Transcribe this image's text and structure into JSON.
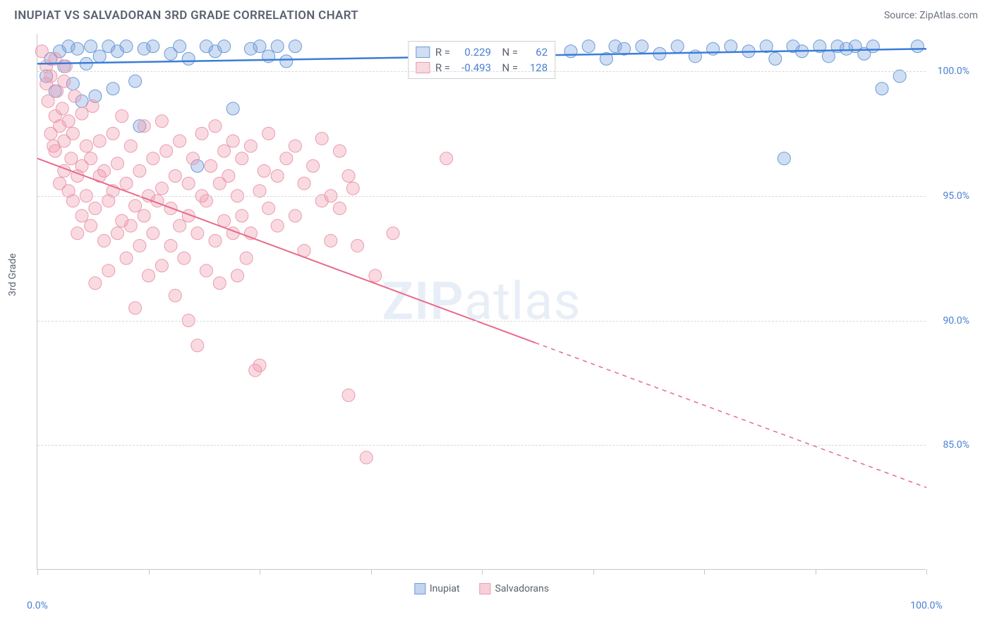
{
  "title": "INUPIAT VS SALVADORAN 3RD GRADE CORRELATION CHART",
  "source": "Source: ZipAtlas.com",
  "ylabel": "3rd Grade",
  "watermark_bold": "ZIP",
  "watermark_rest": "atlas",
  "chart": {
    "type": "scatter",
    "xlim": [
      0,
      100
    ],
    "ylim": [
      80,
      101.5
    ],
    "yticks": [
      85.0,
      90.0,
      95.0,
      100.0
    ],
    "ytick_labels": [
      "85.0%",
      "90.0%",
      "95.0%",
      "100.0%"
    ],
    "xticks": [
      0,
      12.5,
      25,
      37.5,
      50,
      62.5,
      75,
      87.5,
      100
    ],
    "xtick_labels_shown": {
      "0": "0.0%",
      "100": "100.0%"
    },
    "background_color": "#ffffff",
    "grid_color": "#d8d8d8",
    "axis_color": "#c8c8c8",
    "series": [
      {
        "name": "Inupiat",
        "color_fill": "rgba(120,160,220,0.35)",
        "color_stroke": "#6a9ad8",
        "trend_color": "#3b7dd8",
        "trend_width": 2.5,
        "marker_radius": 9,
        "R": "0.229",
        "N": "62",
        "trend": {
          "x1": 0,
          "y1": 100.3,
          "x2": 100,
          "y2": 100.9,
          "dash_after_x": 100
        },
        "points": [
          [
            1,
            99.8
          ],
          [
            1.5,
            100.5
          ],
          [
            2,
            99.2
          ],
          [
            2.5,
            100.8
          ],
          [
            3,
            100.2
          ],
          [
            3.5,
            101
          ],
          [
            4,
            99.5
          ],
          [
            4.5,
            100.9
          ],
          [
            5,
            98.8
          ],
          [
            5.5,
            100.3
          ],
          [
            6,
            101
          ],
          [
            6.5,
            99
          ],
          [
            7,
            100.6
          ],
          [
            8,
            101
          ],
          [
            8.5,
            99.3
          ],
          [
            9,
            100.8
          ],
          [
            10,
            101
          ],
          [
            11,
            99.6
          ],
          [
            11.5,
            97.8
          ],
          [
            12,
            100.9
          ],
          [
            13,
            101
          ],
          [
            15,
            100.7
          ],
          [
            16,
            101
          ],
          [
            17,
            100.5
          ],
          [
            18,
            96.2
          ],
          [
            19,
            101
          ],
          [
            20,
            100.8
          ],
          [
            21,
            101
          ],
          [
            22,
            98.5
          ],
          [
            24,
            100.9
          ],
          [
            25,
            101
          ],
          [
            26,
            100.6
          ],
          [
            27,
            101
          ],
          [
            28,
            100.4
          ],
          [
            29,
            101
          ],
          [
            60,
            100.8
          ],
          [
            62,
            101
          ],
          [
            64,
            100.5
          ],
          [
            65,
            101
          ],
          [
            66,
            100.9
          ],
          [
            68,
            101
          ],
          [
            70,
            100.7
          ],
          [
            72,
            101
          ],
          [
            74,
            100.6
          ],
          [
            76,
            100.9
          ],
          [
            78,
            101
          ],
          [
            80,
            100.8
          ],
          [
            82,
            101
          ],
          [
            83,
            100.5
          ],
          [
            84,
            96.5
          ],
          [
            85,
            101
          ],
          [
            86,
            100.8
          ],
          [
            88,
            101
          ],
          [
            89,
            100.6
          ],
          [
            90,
            101
          ],
          [
            91,
            100.9
          ],
          [
            92,
            101
          ],
          [
            93,
            100.7
          ],
          [
            94,
            101
          ],
          [
            95,
            99.3
          ],
          [
            97,
            99.8
          ],
          [
            99,
            101
          ]
        ]
      },
      {
        "name": "Salvadorans",
        "color_fill": "rgba(240,150,170,0.35)",
        "color_stroke": "#ea9ab2",
        "trend_color": "#e86a8a",
        "trend_width": 2,
        "marker_radius": 9,
        "R": "-0.493",
        "N": "128",
        "trend": {
          "x1": 0,
          "y1": 96.5,
          "x2": 100,
          "y2": 83.3,
          "dash_after_x": 56
        },
        "points": [
          [
            0.5,
            100.8
          ],
          [
            1,
            99.5
          ],
          [
            1,
            100.2
          ],
          [
            1.2,
            98.8
          ],
          [
            1.5,
            97.5
          ],
          [
            1.5,
            99.8
          ],
          [
            1.8,
            97
          ],
          [
            2,
            100.5
          ],
          [
            2,
            98.2
          ],
          [
            2,
            96.8
          ],
          [
            2.2,
            99.2
          ],
          [
            2.5,
            97.8
          ],
          [
            2.5,
            95.5
          ],
          [
            2.8,
            98.5
          ],
          [
            3,
            97.2
          ],
          [
            3,
            99.6
          ],
          [
            3,
            96
          ],
          [
            3.2,
            100.2
          ],
          [
            3.5,
            95.2
          ],
          [
            3.5,
            98
          ],
          [
            3.8,
            96.5
          ],
          [
            4,
            94.8
          ],
          [
            4,
            97.5
          ],
          [
            4.2,
            99
          ],
          [
            4.5,
            95.8
          ],
          [
            4.5,
            93.5
          ],
          [
            5,
            96.2
          ],
          [
            5,
            98.3
          ],
          [
            5,
            94.2
          ],
          [
            5.5,
            97
          ],
          [
            5.5,
            95
          ],
          [
            6,
            93.8
          ],
          [
            6,
            96.5
          ],
          [
            6.2,
            98.6
          ],
          [
            6.5,
            94.5
          ],
          [
            6.5,
            91.5
          ],
          [
            7,
            95.8
          ],
          [
            7,
            97.2
          ],
          [
            7.5,
            93.2
          ],
          [
            7.5,
            96
          ],
          [
            8,
            94.8
          ],
          [
            8,
            92
          ],
          [
            8.5,
            97.5
          ],
          [
            8.5,
            95.2
          ],
          [
            9,
            93.5
          ],
          [
            9,
            96.3
          ],
          [
            9.5,
            98.2
          ],
          [
            9.5,
            94
          ],
          [
            10,
            95.5
          ],
          [
            10,
            92.5
          ],
          [
            10.5,
            97
          ],
          [
            10.5,
            93.8
          ],
          [
            11,
            94.6
          ],
          [
            11,
            90.5
          ],
          [
            11.5,
            96
          ],
          [
            11.5,
            93
          ],
          [
            12,
            97.8
          ],
          [
            12,
            94.2
          ],
          [
            12.5,
            95
          ],
          [
            12.5,
            91.8
          ],
          [
            13,
            93.5
          ],
          [
            13,
            96.5
          ],
          [
            13.5,
            94.8
          ],
          [
            14,
            92.2
          ],
          [
            14,
            95.3
          ],
          [
            14,
            98
          ],
          [
            14.5,
            96.8
          ],
          [
            15,
            93
          ],
          [
            15,
            94.5
          ],
          [
            15.5,
            91
          ],
          [
            15.5,
            95.8
          ],
          [
            16,
            97.2
          ],
          [
            16,
            93.8
          ],
          [
            16.5,
            92.5
          ],
          [
            17,
            94.2
          ],
          [
            17,
            90
          ],
          [
            17,
            95.5
          ],
          [
            17.5,
            96.5
          ],
          [
            18,
            89
          ],
          [
            18,
            93.5
          ],
          [
            18.5,
            95
          ],
          [
            18.5,
            97.5
          ],
          [
            19,
            94.8
          ],
          [
            19,
            92
          ],
          [
            19.5,
            96.2
          ],
          [
            20,
            97.8
          ],
          [
            20,
            93.2
          ],
          [
            20.5,
            95.5
          ],
          [
            20.5,
            91.5
          ],
          [
            21,
            94
          ],
          [
            21,
            96.8
          ],
          [
            21.5,
            95.8
          ],
          [
            22,
            93.5
          ],
          [
            22,
            97.2
          ],
          [
            22.5,
            91.8
          ],
          [
            22.5,
            95
          ],
          [
            23,
            96.5
          ],
          [
            23,
            94.2
          ],
          [
            23.5,
            92.5
          ],
          [
            24,
            97
          ],
          [
            24,
            93.5
          ],
          [
            24.5,
            88
          ],
          [
            25,
            95.2
          ],
          [
            25,
            88.2
          ],
          [
            25.5,
            96
          ],
          [
            26,
            94.5
          ],
          [
            26,
            97.5
          ],
          [
            27,
            93.8
          ],
          [
            27,
            95.8
          ],
          [
            28,
            96.5
          ],
          [
            29,
            94.2
          ],
          [
            29,
            97
          ],
          [
            30,
            95.5
          ],
          [
            30,
            92.8
          ],
          [
            31,
            96.2
          ],
          [
            32,
            94.8
          ],
          [
            32,
            97.3
          ],
          [
            33,
            95
          ],
          [
            33,
            93.2
          ],
          [
            34,
            96.8
          ],
          [
            34,
            94.5
          ],
          [
            35,
            95.8
          ],
          [
            35,
            87
          ],
          [
            35.5,
            95.3
          ],
          [
            36,
            93
          ],
          [
            37,
            84.5
          ],
          [
            38,
            91.8
          ],
          [
            40,
            93.5
          ],
          [
            46,
            96.5
          ]
        ]
      }
    ]
  },
  "legend": [
    {
      "label": "Inupiat",
      "fill": "rgba(120,160,220,0.45)",
      "stroke": "#6a9ad8"
    },
    {
      "label": "Salvadorans",
      "fill": "rgba(240,150,170,0.45)",
      "stroke": "#ea9ab2"
    }
  ]
}
